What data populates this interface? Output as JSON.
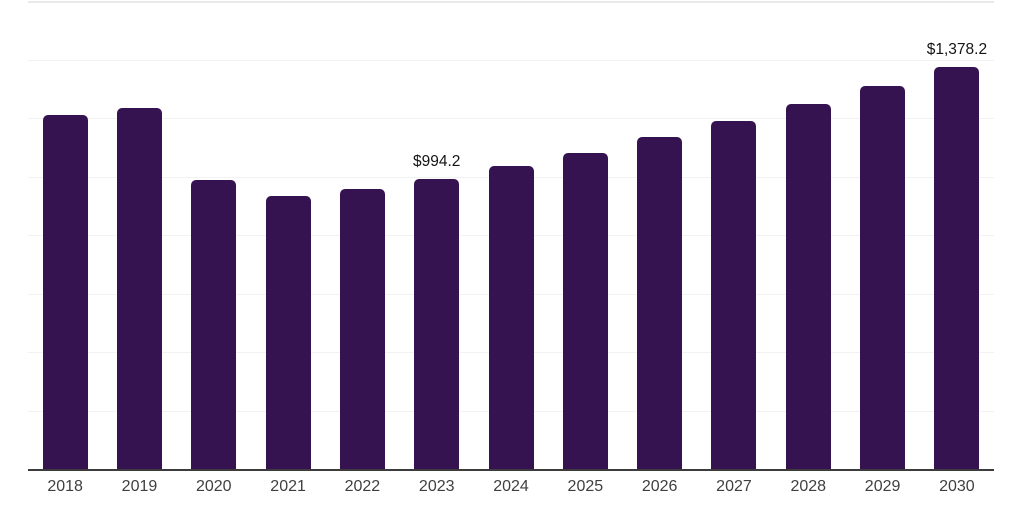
{
  "chart_data": {
    "type": "bar",
    "title": "",
    "xlabel": "",
    "ylabel": "",
    "categories": [
      "2018",
      "2019",
      "2020",
      "2021",
      "2022",
      "2023",
      "2024",
      "2025",
      "2026",
      "2027",
      "2028",
      "2029",
      "2030"
    ],
    "values": [
      1213,
      1238,
      992,
      936,
      960,
      994.2,
      1040,
      1085,
      1140,
      1193,
      1250,
      1314,
      1378.2
    ],
    "data_labels": {
      "2023": "$994.2",
      "2030": "$1,378.2"
    },
    "ylim": [
      0,
      1600
    ],
    "grid_step": 200,
    "grid": "horizontal gridlines only, no y-axis tick labels",
    "legend_position": "none"
  },
  "colors": {
    "bar_fill": "#351250",
    "gridline": "#f2f2f2",
    "top_border": "#e9e9e9",
    "axis_line": "#3c3c3c",
    "x_tick_label": "#3f3f3f",
    "data_label": "#141414",
    "background": "#ffffff"
  }
}
